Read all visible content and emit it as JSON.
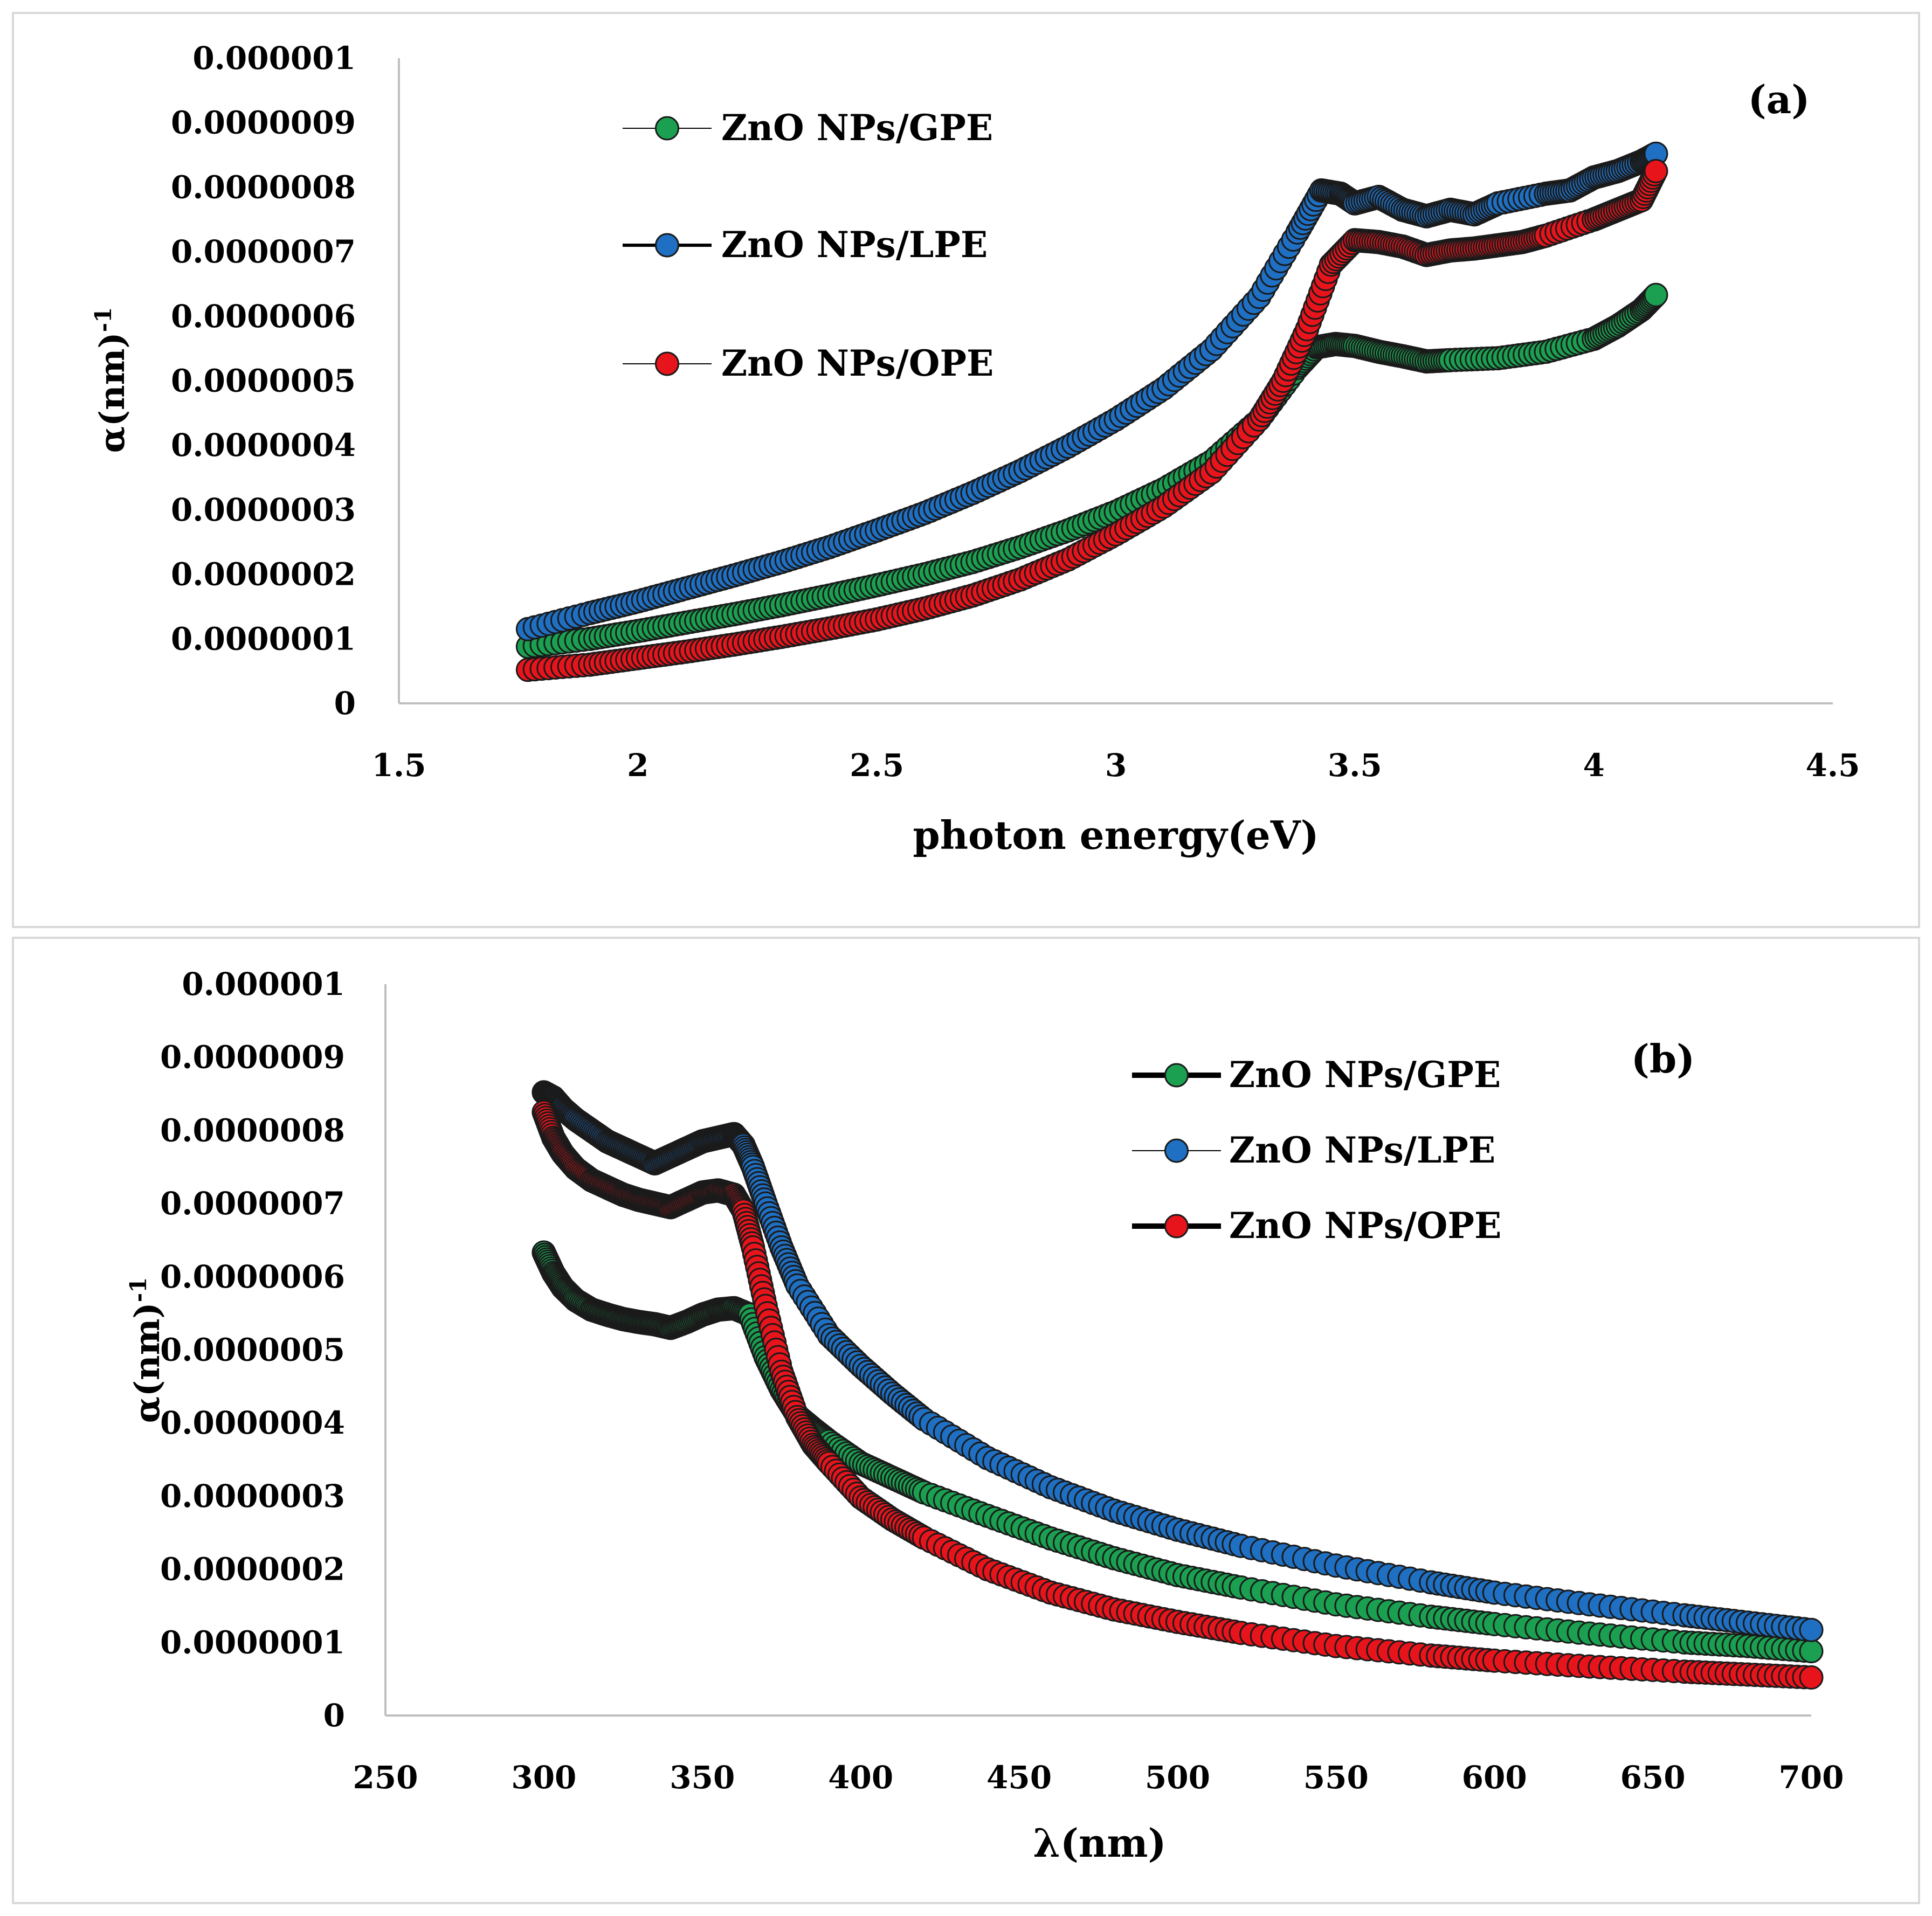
{
  "chart_data": [
    {
      "type": "scatter",
      "panel_label": "(a)",
      "xlabel": "photon energy(eV)",
      "ylabel_main": "α(nm)",
      "ylabel_sup": "-1",
      "xlim": [
        1.5,
        4.5
      ],
      "ylim": [
        0,
        1e-06
      ],
      "x_ticks": [
        "1.5",
        "2",
        "2.5",
        "3",
        "3.5",
        "4",
        "4.5"
      ],
      "y_ticks": [
        "0",
        "0.0000001",
        "0.0000002",
        "0.0000003",
        "0.0000004",
        "0.0000005",
        "0.0000006",
        "0.0000007",
        "0.0000008",
        "0.0000009",
        "0.000001"
      ],
      "legend_position": "top-left",
      "grid": false,
      "series": [
        {
          "name": "ZnO NPs/GPE",
          "color": "#1aa050",
          "line_color": "#000000",
          "x": [
            1.77,
            1.9,
            2.0,
            2.1,
            2.2,
            2.3,
            2.4,
            2.5,
            2.6,
            2.7,
            2.8,
            2.9,
            3.0,
            3.1,
            3.2,
            3.3,
            3.38,
            3.42,
            3.46,
            3.5,
            3.55,
            3.6,
            3.65,
            3.7,
            3.8,
            3.9,
            4.0,
            4.05,
            4.1,
            4.13
          ],
          "y": [
            8.8e-08,
            1e-07,
            1.12e-07,
            1.25e-07,
            1.38e-07,
            1.52e-07,
            1.67e-07,
            1.83e-07,
            2e-07,
            2.19e-07,
            2.42e-07,
            2.68e-07,
            2.97e-07,
            3.32e-07,
            3.75e-07,
            4.4e-07,
            5.2e-07,
            5.52e-07,
            5.57e-07,
            5.54e-07,
            5.45e-07,
            5.38e-07,
            5.3e-07,
            5.32e-07,
            5.35e-07,
            5.45e-07,
            5.65e-07,
            5.85e-07,
            6.1e-07,
            6.33e-07
          ]
        },
        {
          "name": "ZnO NPs/LPE",
          "color": "#1f6fc2",
          "line_color": "#000000",
          "x": [
            1.77,
            1.9,
            2.0,
            2.1,
            2.2,
            2.3,
            2.4,
            2.5,
            2.6,
            2.7,
            2.8,
            2.9,
            3.0,
            3.1,
            3.2,
            3.3,
            3.38,
            3.43,
            3.47,
            3.5,
            3.55,
            3.6,
            3.65,
            3.7,
            3.75,
            3.8,
            3.9,
            3.95,
            4.0,
            4.05,
            4.1,
            4.13
          ],
          "y": [
            1.15e-07,
            1.4e-07,
            1.58e-07,
            1.78e-07,
            1.98e-07,
            2.19e-07,
            2.42e-07,
            2.68e-07,
            2.95e-07,
            3.26e-07,
            3.6e-07,
            3.98e-07,
            4.4e-07,
            4.88e-07,
            5.48e-07,
            6.3e-07,
            7.3e-07,
            7.95e-07,
            7.9e-07,
            7.75e-07,
            7.85e-07,
            7.65e-07,
            7.55e-07,
            7.65e-07,
            7.58e-07,
            7.75e-07,
            7.9e-07,
            7.95e-07,
            8.15e-07,
            8.25e-07,
            8.4e-07,
            8.52e-07
          ]
        },
        {
          "name": "ZnO NPs/OPE",
          "color": "#e8141c",
          "line_color": "#000000",
          "x": [
            1.77,
            1.9,
            2.0,
            2.1,
            2.2,
            2.3,
            2.4,
            2.5,
            2.6,
            2.7,
            2.8,
            2.9,
            3.0,
            3.1,
            3.2,
            3.3,
            3.35,
            3.4,
            3.45,
            3.5,
            3.55,
            3.6,
            3.65,
            3.7,
            3.75,
            3.8,
            3.85,
            3.9,
            4.0,
            4.05,
            4.1,
            4.13
          ],
          "y": [
            5.2e-08,
            6e-08,
            7e-08,
            8e-08,
            9.1e-08,
            1.03e-07,
            1.16e-07,
            1.3e-07,
            1.47e-07,
            1.67e-07,
            1.92e-07,
            2.23e-07,
            2.62e-07,
            3.05e-07,
            3.58e-07,
            4.4e-07,
            5e-07,
            5.8e-07,
            6.8e-07,
            7.18e-07,
            7.15e-07,
            7.08e-07,
            6.95e-07,
            7.02e-07,
            7.05e-07,
            7.1e-07,
            7.15e-07,
            7.25e-07,
            7.5e-07,
            7.65e-07,
            7.8e-07,
            8.25e-07
          ]
        }
      ]
    },
    {
      "type": "scatter",
      "panel_label": "(b)",
      "xlabel": "λ(nm)",
      "ylabel_main": "α(nm)",
      "ylabel_sup": "-1",
      "xlim": [
        250,
        700
      ],
      "ylim": [
        0,
        1e-06
      ],
      "x_ticks": [
        "250",
        "300",
        "350",
        "400",
        "450",
        "500",
        "550",
        "600",
        "650",
        "700"
      ],
      "y_ticks": [
        "0",
        "0.0000001",
        "0.0000002",
        "0.0000003",
        "0.0000004",
        "0.0000005",
        "0.0000006",
        "0.0000007",
        "0.0000008",
        "0.0000009",
        "0.000001"
      ],
      "legend_position": "top-right",
      "grid": false,
      "series": [
        {
          "name": "ZnO NPs/GPE",
          "color": "#1aa050",
          "line_color": "#000000",
          "x": [
            300,
            303,
            306,
            310,
            315,
            320,
            325,
            330,
            335,
            340,
            345,
            350,
            355,
            360,
            365,
            370,
            375,
            380,
            385,
            390,
            400,
            410,
            420,
            440,
            460,
            480,
            500,
            520,
            550,
            580,
            600,
            630,
            660,
            680,
            700
          ],
          "y": [
            6.33e-07,
            6.05e-07,
            5.85e-07,
            5.68e-07,
            5.55e-07,
            5.48e-07,
            5.42e-07,
            5.38e-07,
            5.35e-07,
            5.3e-07,
            5.38e-07,
            5.48e-07,
            5.55e-07,
            5.57e-07,
            5.48e-07,
            4.9e-07,
            4.45e-07,
            4.1e-07,
            3.92e-07,
            3.75e-07,
            3.45e-07,
            3.25e-07,
            3.05e-07,
            2.73e-07,
            2.42e-07,
            2.15e-07,
            1.92e-07,
            1.75e-07,
            1.52e-07,
            1.35e-07,
            1.25e-07,
            1.12e-07,
            1e-07,
            9.5e-08,
            8.8e-08
          ]
        },
        {
          "name": "ZnO NPs/LPE",
          "color": "#1f6fc2",
          "line_color": "#000000",
          "x": [
            300,
            303,
            306,
            310,
            315,
            320,
            325,
            330,
            335,
            340,
            345,
            350,
            355,
            360,
            363,
            366,
            370,
            375,
            380,
            390,
            400,
            410,
            420,
            440,
            460,
            480,
            500,
            520,
            550,
            580,
            600,
            630,
            660,
            680,
            700
          ],
          "y": [
            8.52e-07,
            8.45e-07,
            8.3e-07,
            8.15e-07,
            8e-07,
            7.85e-07,
            7.75e-07,
            7.65e-07,
            7.55e-07,
            7.65e-07,
            7.75e-07,
            7.85e-07,
            7.9e-07,
            7.95e-07,
            7.8e-07,
            7.5e-07,
            7e-07,
            6.4e-07,
            5.88e-07,
            5.2e-07,
            4.78e-07,
            4.4e-07,
            4.05e-07,
            3.52e-07,
            3.12e-07,
            2.8e-07,
            2.54e-07,
            2.32e-07,
            2.05e-07,
            1.82e-07,
            1.68e-07,
            1.52e-07,
            1.37e-07,
            1.27e-07,
            1.17e-07
          ]
        },
        {
          "name": "ZnO NPs/OPE",
          "color": "#e8141c",
          "line_color": "#000000",
          "x": [
            300,
            303,
            306,
            310,
            315,
            320,
            325,
            330,
            335,
            340,
            345,
            350,
            355,
            360,
            363,
            366,
            370,
            375,
            380,
            385,
            390,
            400,
            410,
            420,
            440,
            460,
            480,
            500,
            520,
            550,
            580,
            600,
            630,
            660,
            680,
            700
          ],
          "y": [
            8.25e-07,
            7.9e-07,
            7.68e-07,
            7.48e-07,
            7.32e-07,
            7.22e-07,
            7.12e-07,
            7.05e-07,
            7e-07,
            6.95e-07,
            7.05e-07,
            7.15e-07,
            7.18e-07,
            7.12e-07,
            6.9e-07,
            6.4e-07,
            5.6e-07,
            4.7e-07,
            4.08e-07,
            3.7e-07,
            3.45e-07,
            2.98e-07,
            2.68e-07,
            2.43e-07,
            2e-07,
            1.68e-07,
            1.45e-07,
            1.28e-07,
            1.13e-07,
            9.5e-08,
            8.2e-08,
            7.5e-08,
            6.7e-08,
            6e-08,
            5.6e-08,
            5.2e-08
          ]
        }
      ]
    }
  ]
}
